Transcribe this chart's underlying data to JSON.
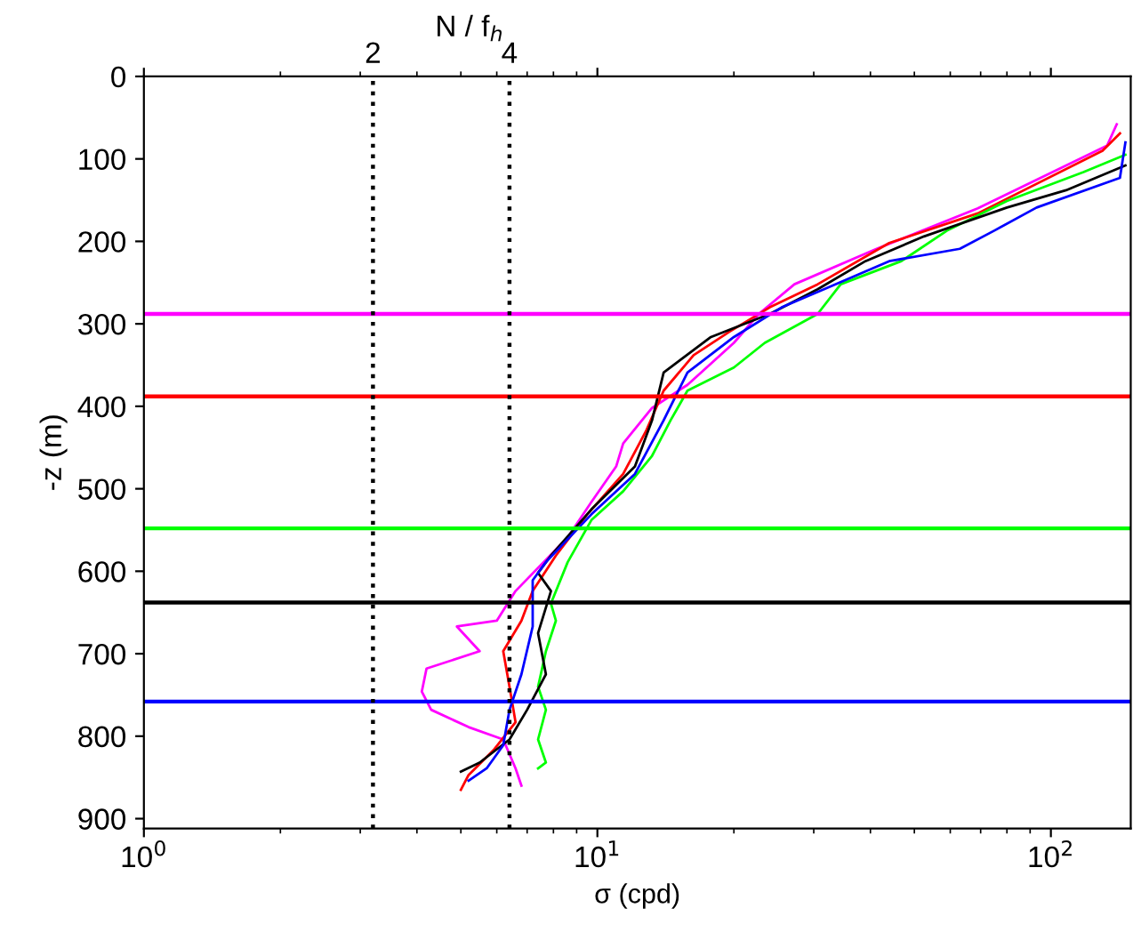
{
  "chart_data": {
    "type": "line",
    "xlabel": "σ (cpd)",
    "ylabel": "-z (m)",
    "annotations": [
      {
        "text": "2",
        "x": 3.2,
        "y": 0
      },
      {
        "text": "4",
        "x": 6.4,
        "y": 0
      },
      "N / f$_{h}$"
    ],
    "log": "x",
    "grid": false,
    "legend": false,
    "marker": "none",
    "line_style": "solid",
    "xlim": [
      1,
      150
    ],
    "xticks": [
      {
        "value": 1,
        "label": "10$^{0}$"
      },
      {
        "value": 10,
        "label": "10$^{1}$"
      },
      {
        "value": 100,
        "label": "10$^{2}$"
      }
    ],
    "ylim": [
      912,
      0
    ],
    "yticks": [
      0,
      100,
      200,
      300,
      400,
      500,
      600,
      700,
      800,
      900
    ],
    "series": [
      {
        "color": "#ff00ff",
        "x": [
          139.7,
          133,
          69,
          41.3,
          27.2,
          22.7,
          20.0,
          15.8,
          13.2,
          11.4,
          11.0,
          9.7,
          8.6,
          6.6,
          6.0,
          4.9,
          5.5,
          4.2,
          4.1,
          4.3,
          5.2,
          6.2,
          6.6,
          6.8
        ],
        "values": [
          58,
          84,
          160,
          209,
          252,
          288,
          323,
          374,
          402,
          445,
          473,
          516,
          559,
          624,
          660,
          667,
          697,
          718,
          746,
          768,
          789,
          804,
          839,
          860
        ]
      },
      {
        "color": "#ff0000",
        "x": [
          142,
          130,
          69,
          44,
          30.6,
          24,
          19.5,
          16.3,
          14,
          12.8,
          11.4,
          9.5,
          8.1,
          7.2,
          6.8,
          6.2,
          6.4,
          6.6,
          5.9,
          5.2,
          5.0
        ],
        "values": [
          69,
          90,
          166,
          202,
          252,
          280,
          310,
          338,
          381,
          430,
          482,
          531,
          581,
          624,
          660,
          697,
          740,
          783,
          817,
          847,
          865
        ]
      },
      {
        "color": "#00ff00",
        "x": [
          146,
          118,
          80,
          59,
          46.8,
          34.4,
          30.6,
          23.4,
          20,
          15.8,
          14.5,
          13.2,
          11.4,
          9.7,
          8.6,
          7.9,
          8.1,
          7.7,
          7.4,
          7.7,
          7.4,
          7.7,
          7.4
        ],
        "values": [
          95,
          116,
          151,
          187,
          224,
          252,
          288,
          323,
          353,
          381,
          417,
          460,
          503,
          538,
          589,
          639,
          660,
          697,
          740,
          768,
          804,
          832,
          839
        ]
      },
      {
        "color": "#000000",
        "x": [
          146,
          108,
          80,
          52.5,
          39,
          30.6,
          24,
          17.8,
          14,
          13.2,
          12.1,
          9.7,
          7.9,
          7.4,
          7.9,
          7.4,
          7.7,
          7.0,
          6.4,
          5.5,
          5.0
        ],
        "values": [
          108,
          138,
          159,
          194,
          224,
          258,
          288,
          316,
          359,
          417,
          473,
          525,
          581,
          602,
          624,
          675,
          725,
          768,
          804,
          832,
          843
        ]
      },
      {
        "color": "#0000ff",
        "x": [
          146,
          142,
          93,
          75,
          63,
          44,
          31.6,
          25.5,
          20,
          15.8,
          14,
          12.1,
          9.7,
          7.7,
          7.2,
          7.2,
          6.8,
          6.4,
          6.2,
          5.7,
          5.2
        ],
        "values": [
          80,
          123,
          159,
          187,
          209,
          224,
          258,
          280,
          316,
          359,
          417,
          482,
          531,
          589,
          611,
          667,
          725,
          768,
          811,
          839,
          854
        ]
      }
    ],
    "ref_lines": [
      {
        "axis": "y",
        "value": 288,
        "color": "#ff00ff",
        "line_style": "solid"
      },
      {
        "axis": "y",
        "value": 388,
        "color": "#ff0000",
        "line_style": "solid"
      },
      {
        "axis": "y",
        "value": 548,
        "color": "#00ff00",
        "line_style": "solid"
      },
      {
        "axis": "y",
        "value": 638,
        "color": "#000000",
        "line_style": "solid"
      },
      {
        "axis": "y",
        "value": 758,
        "color": "#0000ff",
        "line_style": "solid"
      },
      {
        "axis": "x",
        "value": 3.2,
        "color": "#000000",
        "line_style": "dotted"
      },
      {
        "axis": "x",
        "value": 6.4,
        "color": "#000000",
        "line_style": "dotted"
      }
    ]
  }
}
